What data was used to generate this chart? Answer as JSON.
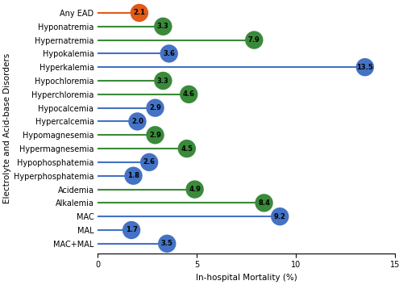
{
  "categories": [
    "Any EAD",
    "Hyponatremia",
    "Hypernatremia",
    "Hypokalemia",
    "Hyperkalemia",
    "Hypochloremia",
    "Hyperchloremia",
    "Hypocalcemia",
    "Hypercalcemia",
    "Hypomagnesemia",
    "Hypermagnesemia",
    "Hypophosphatemia",
    "Hyperphosphatemia",
    "Acidemia",
    "Alkalemia",
    "MAC",
    "MAL",
    "MAC+MAL"
  ],
  "values": [
    2.1,
    3.3,
    7.9,
    3.6,
    13.5,
    3.3,
    4.6,
    2.9,
    2.0,
    2.9,
    4.5,
    2.6,
    1.8,
    4.9,
    8.4,
    9.2,
    1.7,
    3.5
  ],
  "colors": [
    "#e05a1a",
    "#3a8a3a",
    "#3a8a3a",
    "#4472c4",
    "#4472c4",
    "#3a8a3a",
    "#3a8a3a",
    "#4472c4",
    "#4472c4",
    "#3a8a3a",
    "#3a8a3a",
    "#4472c4",
    "#4472c4",
    "#3a8a3a",
    "#3a8a3a",
    "#4472c4",
    "#4472c4",
    "#4472c4"
  ],
  "xlabel": "In-hospital Mortality (%)",
  "ylabel": "Electrolyte and Acid-base Disorders",
  "xlim": [
    0,
    15
  ],
  "title": "",
  "background_color": "#ffffff",
  "font_size": 7.0,
  "label_font_size": 7.5,
  "tick_font_size": 7.0,
  "dot_text_fontsize": 6.0,
  "marker_size": 260,
  "linewidth": 1.5
}
